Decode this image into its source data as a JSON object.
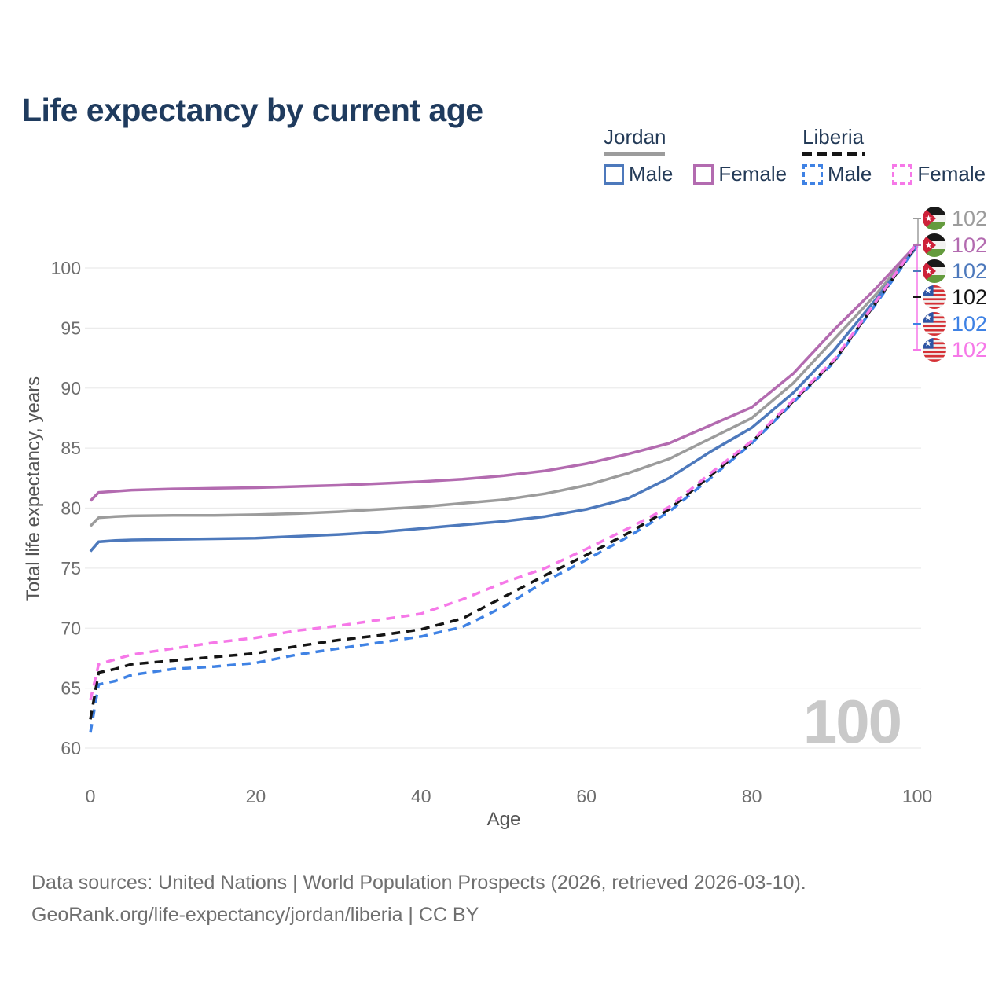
{
  "header": {
    "title": "Life expectancy by current age"
  },
  "legend": {
    "groups": [
      {
        "country": "Jordan",
        "line_style": "solid",
        "key_color": "#9c9c9c",
        "items": [
          {
            "label": "Male",
            "color": "#4d79bc"
          },
          {
            "label": "Female",
            "color": "#b36bb0"
          }
        ]
      },
      {
        "country": "Liberia",
        "line_style": "dashed",
        "key_color": "#151515",
        "items": [
          {
            "label": "Male",
            "color": "#3f82e4"
          },
          {
            "label": "Female",
            "color": "#f678e8"
          }
        ]
      }
    ]
  },
  "chart_data": {
    "type": "line",
    "title": "Life expectancy by current age",
    "xlabel": "Age",
    "ylabel": "Total life expectancy, years",
    "xlim": [
      0,
      100
    ],
    "ylim": [
      60,
      103
    ],
    "x_ticks": [
      0,
      20,
      40,
      60,
      80,
      100
    ],
    "y_ticks": [
      60,
      65,
      70,
      75,
      80,
      85,
      90,
      95,
      100
    ],
    "grid": true,
    "legend_position": "top-right",
    "watermark": "100",
    "x": [
      0,
      1,
      3,
      5,
      10,
      15,
      20,
      25,
      30,
      35,
      40,
      45,
      50,
      55,
      60,
      65,
      70,
      75,
      80,
      85,
      90,
      95,
      100
    ],
    "series": [
      {
        "name": "Jordan Both sexes",
        "country": "Jordan",
        "sex": "Both",
        "color": "#9c9c9c",
        "dash": false,
        "values": [
          78.5,
          79.2,
          79.3,
          79.35,
          79.4,
          79.4,
          79.45,
          79.55,
          79.7,
          79.9,
          80.1,
          80.4,
          80.7,
          81.2,
          81.9,
          82.9,
          84.1,
          85.8,
          87.5,
          90.4,
          94.1,
          97.8,
          101.9
        ]
      },
      {
        "name": "Jordan Male",
        "country": "Jordan",
        "sex": "Male",
        "color": "#4d79bc",
        "dash": false,
        "values": [
          76.4,
          77.2,
          77.3,
          77.35,
          77.4,
          77.45,
          77.5,
          77.65,
          77.8,
          78.0,
          78.3,
          78.6,
          78.9,
          79.3,
          79.9,
          80.8,
          82.5,
          84.7,
          86.7,
          89.6,
          93.2,
          97.4,
          101.8
        ]
      },
      {
        "name": "Jordan Female",
        "country": "Jordan",
        "sex": "Female",
        "color": "#b36bb0",
        "dash": false,
        "values": [
          80.6,
          81.3,
          81.4,
          81.5,
          81.6,
          81.65,
          81.7,
          81.8,
          81.9,
          82.05,
          82.2,
          82.4,
          82.7,
          83.1,
          83.7,
          84.5,
          85.4,
          86.9,
          88.4,
          91.2,
          94.9,
          98.3,
          102.0
        ]
      },
      {
        "name": "Liberia Male",
        "country": "Liberia",
        "sex": "Male",
        "color": "#3f82e4",
        "dash": true,
        "values": [
          61.3,
          65.3,
          65.6,
          66.1,
          66.6,
          66.8,
          67.1,
          67.8,
          68.3,
          68.8,
          69.3,
          70.1,
          71.8,
          73.9,
          75.7,
          77.6,
          79.7,
          82.5,
          85.4,
          88.8,
          92.2,
          97.0,
          101.9
        ]
      },
      {
        "name": "Liberia Both sexes",
        "country": "Liberia",
        "sex": "Both",
        "color": "#151515",
        "dash": true,
        "values": [
          62.4,
          66.3,
          66.6,
          67.0,
          67.3,
          67.6,
          67.9,
          68.5,
          69.0,
          69.4,
          69.9,
          70.8,
          72.6,
          74.4,
          76.1,
          77.9,
          79.9,
          82.7,
          85.5,
          88.9,
          92.3,
          97.1,
          102.0
        ]
      },
      {
        "name": "Liberia Female",
        "country": "Liberia",
        "sex": "Female",
        "color": "#f678e8",
        "dash": true,
        "values": [
          64.0,
          67.0,
          67.4,
          67.8,
          68.3,
          68.8,
          69.2,
          69.8,
          70.2,
          70.7,
          71.2,
          72.4,
          73.8,
          75.0,
          76.6,
          78.3,
          80.1,
          82.9,
          85.6,
          89.0,
          92.4,
          97.2,
          102.1
        ]
      }
    ],
    "end_labels": [
      {
        "flag": "jordan-flag-icon",
        "country": "Jordan",
        "series": "Both sexes",
        "text": "102",
        "color": "#9c9c9c"
      },
      {
        "flag": "jordan-flag-icon",
        "country": "Jordan",
        "series": "Female",
        "text": "102",
        "color": "#b36bb0"
      },
      {
        "flag": "jordan-flag-icon",
        "country": "Jordan",
        "series": "Male",
        "text": "102",
        "color": "#4d79bc"
      },
      {
        "flag": "liberia-flag-icon",
        "country": "Liberia",
        "series": "Both sexes",
        "text": "102",
        "color": "#151515"
      },
      {
        "flag": "liberia-flag-icon",
        "country": "Liberia",
        "series": "Male",
        "text": "102",
        "color": "#3f82e4"
      },
      {
        "flag": "liberia-flag-icon",
        "country": "Liberia",
        "series": "Female",
        "text": "102",
        "color": "#f678e8"
      }
    ],
    "colors": {
      "grid": "#ebebeb",
      "tick_text": "#6e6e6e",
      "axis_title": "#555555",
      "watermark": "#c9c9c9"
    }
  },
  "footer": {
    "line1": "Data sources: United Nations | World Population Prospects (2026, retrieved 2026-03-10).",
    "line2": "GeoRank.org/life-expectancy/jordan/liberia | CC BY"
  }
}
